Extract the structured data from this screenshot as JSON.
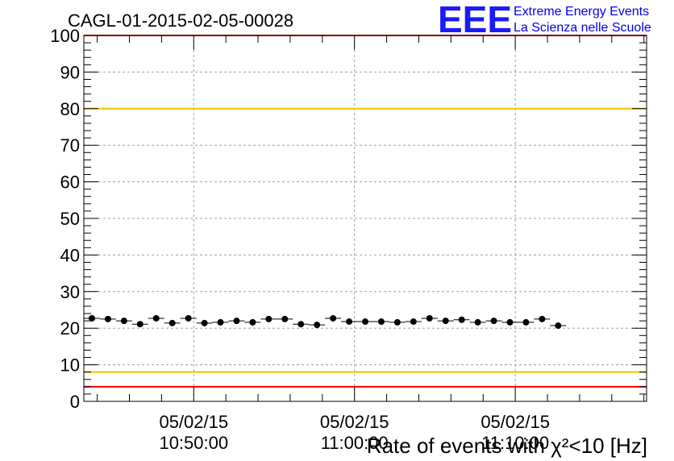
{
  "chart_data": {
    "type": "scatter",
    "title": "CAGL-01-2015-02-05-00028",
    "xlabel": "Rate of events with χ²<10 [Hz]",
    "ylabel": "",
    "ylim": [
      0,
      100
    ],
    "yticks": [
      "0",
      "10",
      "20",
      "30",
      "40",
      "50",
      "60",
      "70",
      "80",
      "90",
      "100"
    ],
    "x_time_range": [
      "10:43:10",
      "11:18:10"
    ],
    "xtick_labels": [
      {
        "time": "10:50:00",
        "date": "05/02/15",
        "label": "10:50:00"
      },
      {
        "time": "11:00:00",
        "date": "05/02/15",
        "label": "11:00:00"
      },
      {
        "time": "11:10:00",
        "date": "05/02/15",
        "label": "11:10:00"
      }
    ],
    "grid": true,
    "bin_width_minutes": 1,
    "series": [
      {
        "start_time": "10:43:10",
        "values": [
          22.7,
          22.5,
          22.0,
          21.1,
          22.7,
          21.4,
          22.7,
          21.4,
          21.6,
          22.0,
          21.6,
          22.5,
          22.5,
          21.1,
          20.9,
          22.7,
          21.8,
          21.8,
          21.8,
          21.6,
          21.8,
          22.7,
          22.0,
          22.3,
          21.6,
          22.0,
          21.6,
          21.6,
          22.5,
          20.7
        ]
      }
    ],
    "reference_lines": [
      {
        "y": 4,
        "color": "#ff0000"
      },
      {
        "y": 8,
        "color": "#f2c200"
      },
      {
        "y": 80,
        "color": "#f2c200"
      },
      {
        "y": 100,
        "color": "#ff0000"
      }
    ]
  },
  "logo": {
    "mark": "EEE",
    "line1": "Extreme Energy Events",
    "line2": "La Scienza nelle Scuole",
    "color": "#1a1aff"
  }
}
